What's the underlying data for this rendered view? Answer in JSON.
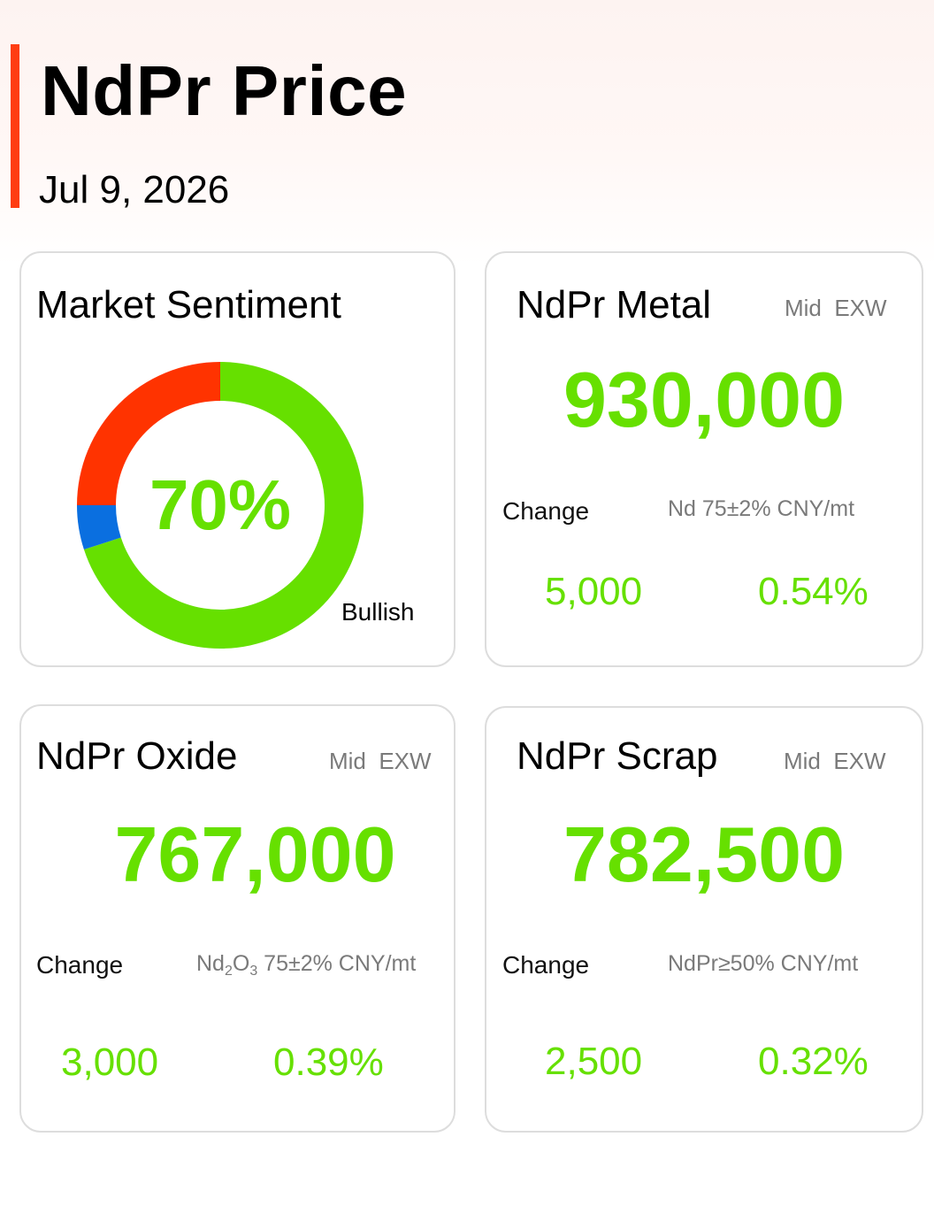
{
  "header": {
    "title": "NdPr Price",
    "date": "Jul 9, 2026"
  },
  "colors": {
    "accent": "#ff3d12",
    "positive": "#66e000",
    "bearish": "#ff3300",
    "neutral": "#0a6fe0"
  },
  "sentiment": {
    "title": "Market Sentiment",
    "center_label": "70%",
    "label": "Bullish"
  },
  "chart_data": {
    "type": "pie",
    "style": "donut",
    "title": "Market Sentiment",
    "slices": [
      {
        "label": "Bullish",
        "value": 70,
        "color": "#66e000"
      },
      {
        "label": "",
        "value": 5,
        "color": "#0a6fe0"
      },
      {
        "label": "",
        "value": 25,
        "color": "#ff3300"
      }
    ]
  },
  "cards": {
    "metal": {
      "title": "NdPr Metal",
      "tag": "Mid  EXW",
      "price": "930,000",
      "change_label": "Change",
      "spec": "Nd 75±2% CNY/mt",
      "change_abs": "5,000",
      "change_pct": "0.54%"
    },
    "oxide": {
      "title": "NdPr Oxide",
      "tag": "Mid  EXW",
      "price": "767,000",
      "change_label": "Change",
      "spec_parts": {
        "a": "Nd",
        "sub1": "2",
        "b": "O",
        "sub2": "3",
        "c": " 75±2% CNY/mt"
      },
      "change_abs": "3,000",
      "change_pct": "0.39%"
    },
    "scrap": {
      "title": "NdPr Scrap",
      "tag": "Mid  EXW",
      "price": "782,500",
      "change_label": "Change",
      "spec": "NdPr≥50% CNY/mt",
      "change_abs": "2,500",
      "change_pct": "0.32%"
    }
  }
}
